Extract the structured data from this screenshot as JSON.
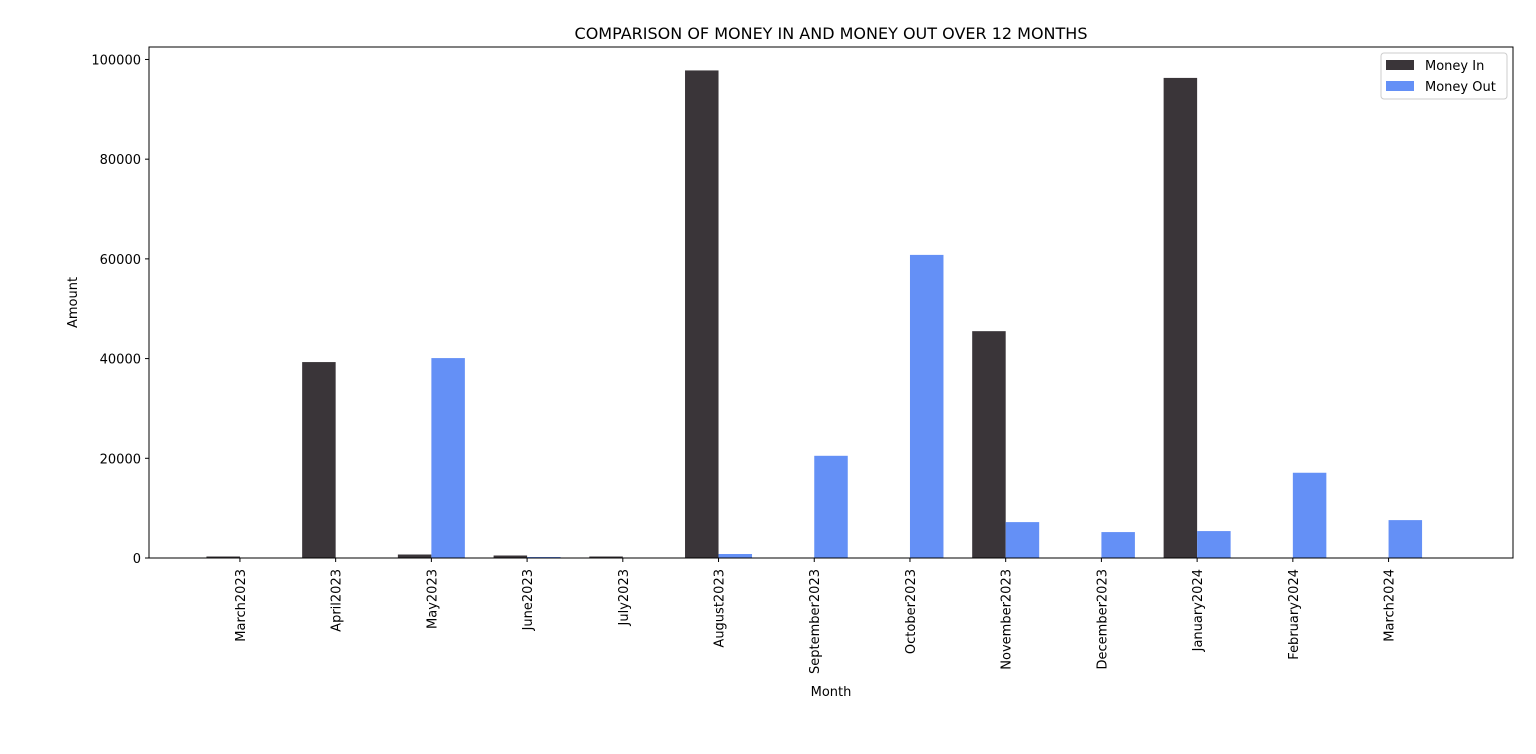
{
  "chart_data": {
    "type": "bar",
    "title": "COMPARISON OF MONEY IN AND MONEY OUT OVER 12 MONTHS",
    "xlabel": "Month",
    "ylabel": "Amount",
    "categories": [
      "March2023",
      "April2023",
      "May2023",
      "June2023",
      "July2023",
      "August2023",
      "September2023",
      "October2023",
      "November2023",
      "December2023",
      "January2024",
      "February2024",
      "March2024"
    ],
    "series": [
      {
        "name": "Money In",
        "color": "#3a3539",
        "values": [
          300,
          39300,
          700,
          500,
          300,
          97800,
          0,
          0,
          45500,
          0,
          96300,
          0,
          0
        ]
      },
      {
        "name": "Money Out",
        "color": "#6490f6",
        "values": [
          0,
          0,
          40100,
          200,
          0,
          800,
          20500,
          60800,
          7200,
          5200,
          5400,
          17100,
          7600
        ]
      }
    ],
    "yticks": [
      "0",
      "20000",
      "40000",
      "60000",
      "80000",
      "100000"
    ],
    "ylim": [
      0,
      102500
    ],
    "grid": false,
    "legend_position": "top-right"
  }
}
